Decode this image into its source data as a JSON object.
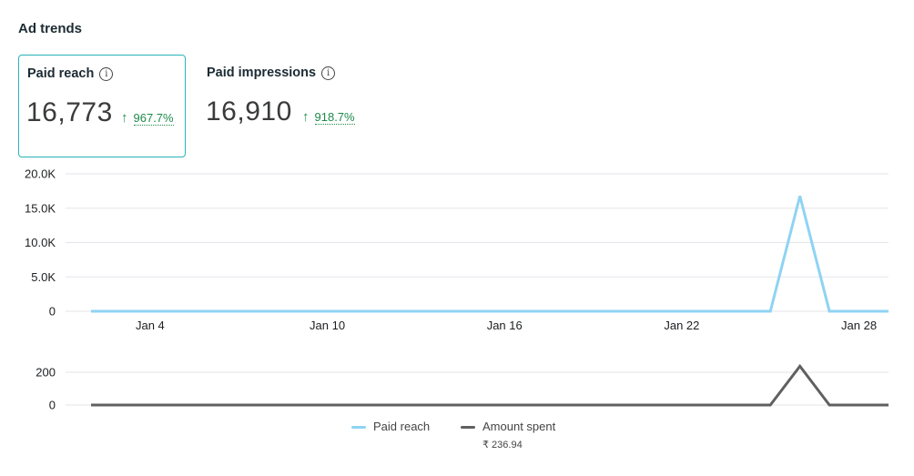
{
  "header": {
    "title": "Ad trends"
  },
  "metrics": [
    {
      "label": "Paid reach",
      "value": "16,773",
      "change": "967.7%",
      "arrow": "↑"
    },
    {
      "label": "Paid impressions",
      "value": "16,910",
      "change": "918.7%",
      "arrow": "↑"
    }
  ],
  "info_glyph": "i",
  "colors": {
    "accent": "#2bb3b8",
    "reach": "#8fd3f4",
    "spent": "#606060",
    "positive": "#1d8a4a",
    "grid": "#e4e6eb"
  },
  "chart_data": [
    {
      "type": "line",
      "x_ticks": [
        "Jan 4",
        "Jan 10",
        "Jan 16",
        "Jan 22",
        "Jan 28"
      ],
      "y_ticks": [
        "20.0K",
        "15.0K",
        "10.0K",
        "5.0K",
        "0"
      ],
      "ylim": [
        0,
        20000
      ],
      "x": [
        "Jan 2",
        "Jan 3",
        "Jan 4",
        "Jan 5",
        "Jan 6",
        "Jan 7",
        "Jan 8",
        "Jan 9",
        "Jan 10",
        "Jan 11",
        "Jan 12",
        "Jan 13",
        "Jan 14",
        "Jan 15",
        "Jan 16",
        "Jan 17",
        "Jan 18",
        "Jan 19",
        "Jan 20",
        "Jan 21",
        "Jan 22",
        "Jan 23",
        "Jan 24",
        "Jan 25",
        "Jan 26",
        "Jan 27",
        "Jan 28",
        "Jan 29"
      ],
      "series": [
        {
          "name": "Paid reach",
          "values": [
            0,
            0,
            0,
            0,
            0,
            0,
            0,
            0,
            0,
            0,
            0,
            0,
            0,
            0,
            0,
            0,
            0,
            0,
            0,
            0,
            0,
            0,
            0,
            0,
            16773,
            0,
            0,
            0
          ]
        }
      ],
      "grid": true
    },
    {
      "type": "line",
      "y_ticks": [
        "200",
        "0"
      ],
      "ylim": [
        0,
        200
      ],
      "x": [
        "Jan 2",
        "Jan 3",
        "Jan 4",
        "Jan 5",
        "Jan 6",
        "Jan 7",
        "Jan 8",
        "Jan 9",
        "Jan 10",
        "Jan 11",
        "Jan 12",
        "Jan 13",
        "Jan 14",
        "Jan 15",
        "Jan 16",
        "Jan 17",
        "Jan 18",
        "Jan 19",
        "Jan 20",
        "Jan 21",
        "Jan 22",
        "Jan 23",
        "Jan 24",
        "Jan 25",
        "Jan 26",
        "Jan 27",
        "Jan 28",
        "Jan 29"
      ],
      "series": [
        {
          "name": "Amount spent",
          "values": [
            0,
            0,
            0,
            0,
            0,
            0,
            0,
            0,
            0,
            0,
            0,
            0,
            0,
            0,
            0,
            0,
            0,
            0,
            0,
            0,
            0,
            0,
            0,
            0,
            236.94,
            0,
            0,
            0
          ]
        }
      ],
      "grid": true
    }
  ],
  "legend": {
    "position": "bottom-center",
    "items": [
      {
        "label": "Paid reach"
      },
      {
        "label": "Amount spent",
        "sublabel": "₹ 236.94"
      }
    ]
  }
}
